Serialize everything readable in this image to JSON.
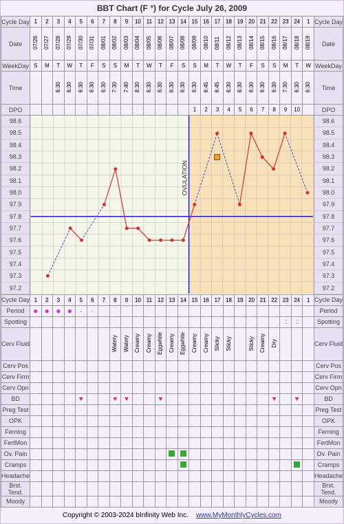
{
  "title": "BBT Chart (F °) for Cycle July 26, 2009",
  "footer_copyright": "Copyright © 2003-2024 bInfinity Web Inc.",
  "footer_link": "www.MyMonthlyCycles.com",
  "labels": {
    "cycleDay": "Cycle Day",
    "date": "Date",
    "weekday": "WeekDay",
    "time": "Time",
    "dpo": "DPO",
    "period": "Period",
    "spotting": "Spotting",
    "cervFluid": "Cerv Fluid",
    "cervPos": "Cerv Pos",
    "cervFirm": "Cerv Firm",
    "cervOpn": "Cerv Opn",
    "bd": "BD",
    "pregTest": "Preg Test",
    "opk": "OPK",
    "ferning": "Ferning",
    "fertMon": "FertMon",
    "ovPain": "Ov. Pain",
    "cramps": "Cramps",
    "headache": "Headache",
    "brstTend": "Brst. Tend.",
    "moody": "Moody"
  },
  "cycleDays": [
    1,
    2,
    3,
    4,
    5,
    6,
    7,
    8,
    9,
    10,
    11,
    12,
    13,
    14,
    15,
    16,
    17,
    18,
    19,
    20,
    21,
    22,
    23,
    24,
    1
  ],
  "dates": [
    "07/26",
    "07/27",
    "07/28",
    "07/29",
    "07/30",
    "07/31",
    "08/01",
    "08/02",
    "08/03",
    "08/04",
    "08/05",
    "08/06",
    "08/07",
    "08/08",
    "08/09",
    "08/10",
    "08/11",
    "08/12",
    "08/13",
    "08/14",
    "08/15",
    "08/16",
    "08/17",
    "08/18",
    "08/19"
  ],
  "weekdays": [
    "S",
    "M",
    "T",
    "W",
    "T",
    "F",
    "S",
    "S",
    "M",
    "T",
    "W",
    "T",
    "F",
    "S",
    "S",
    "M",
    "T",
    "W",
    "T",
    "F",
    "S",
    "S",
    "M",
    "T",
    "W"
  ],
  "times": [
    "",
    "",
    "6:30",
    "6:30",
    "6:30",
    "6:30",
    "6:30",
    "7:30",
    "7:40",
    "8:30",
    "6:30",
    "6:30",
    "6:30",
    "6:30",
    "6:30",
    "6:45",
    "6:45",
    "6:30",
    "6:30",
    "6:30",
    "6:30",
    "6:30",
    "7:30",
    "6:30",
    "6:30"
  ],
  "dpo": [
    "",
    "",
    "",
    "",
    "",
    "",
    "",
    "",
    "",
    "",
    "",
    "",
    "",
    "",
    "1",
    "2",
    "3",
    "4",
    "5",
    "6",
    "7",
    "8",
    "9",
    "10",
    ""
  ],
  "period": [
    "●",
    "●",
    "●",
    "●",
    "·",
    "·",
    "",
    "",
    "",
    "",
    "",
    "",
    "",
    "",
    "",
    "",
    "",
    "",
    "",
    "",
    "",
    "",
    "",
    "",
    ""
  ],
  "spotting": [
    "",
    "",
    "",
    "",
    "",
    "",
    "",
    "",
    "",
    "",
    "",
    "",
    "",
    "",
    "",
    "",
    "",
    "",
    "",
    "",
    "",
    "",
    "::",
    "::",
    ""
  ],
  "cervFluid": [
    "",
    "",
    "",
    "",
    "",
    "",
    "",
    "Watery",
    "Watery",
    "Creamy",
    "Creamy",
    "Eggwhite",
    "Creamy",
    "Eggwhite",
    "Creamy",
    "Creamy",
    "Sticky",
    "Sticky",
    "",
    "Sticky",
    "Creamy",
    "Dry",
    "",
    "",
    ""
  ],
  "bd": [
    "",
    "",
    "",
    "",
    "♥",
    "",
    "",
    "♥",
    "♥",
    "",
    "",
    "♥",
    "",
    "",
    "",
    "",
    "",
    "",
    "",
    "",
    "",
    "♥",
    "",
    "♥",
    ""
  ],
  "ovPain": [
    "",
    "",
    "",
    "",
    "",
    "",
    "",
    "",
    "",
    "",
    "",
    "",
    "■",
    "■",
    "",
    "",
    "",
    "",
    "",
    "",
    "",
    "",
    "",
    "",
    ""
  ],
  "cramps": [
    "",
    "",
    "",
    "",
    "",
    "",
    "",
    "",
    "",
    "",
    "",
    "",
    "",
    "■",
    "",
    "",
    "",
    "",
    "",
    "",
    "",
    "",
    "",
    "■",
    ""
  ],
  "chart": {
    "y_values": [
      98.6,
      98.5,
      98.4,
      98.3,
      98.2,
      98.1,
      98.0,
      97.9,
      97.8,
      97.7,
      97.6,
      97.5,
      97.4,
      97.3,
      97.2
    ],
    "ymin": 97.2,
    "ymax": 98.6,
    "temps": [
      null,
      97.3,
      null,
      97.7,
      97.6,
      null,
      97.9,
      98.2,
      97.7,
      97.7,
      97.6,
      97.6,
      97.6,
      97.6,
      97.9,
      null,
      98.5,
      null,
      97.9,
      98.5,
      98.3,
      98.2,
      98.5,
      null,
      98.0
    ],
    "ovulation_day_index": 13,
    "luteal_start_index": 14,
    "coverline_y": 97.8,
    "marker_square_index": 16,
    "marker_square_temp": 98.3,
    "line_color": "#cc3333",
    "dash_color": "#6060c0",
    "coverline_color": "#2020d0",
    "ov_line_color": "#2020d0",
    "grid_color": "#bbbbbb",
    "luteal_bg": "#f8e0b8",
    "pre_bg": "#f5f5ea"
  }
}
